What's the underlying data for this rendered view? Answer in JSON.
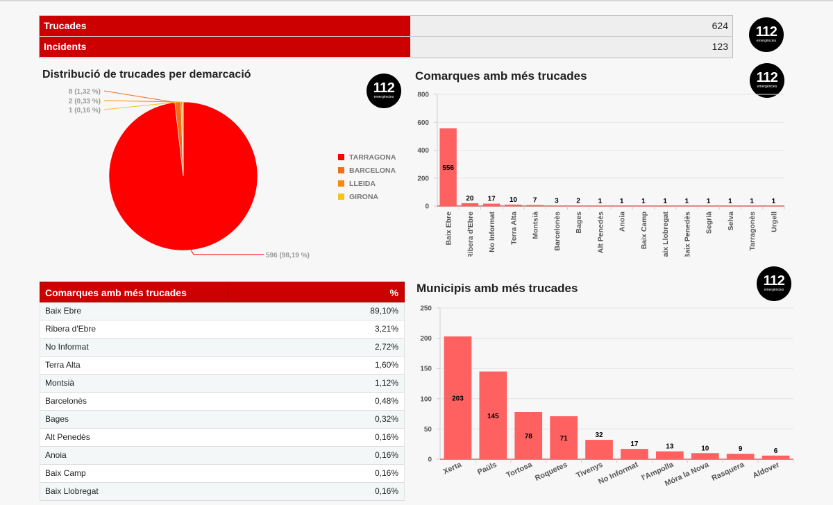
{
  "summary": [
    {
      "label": "Trucades",
      "value": "624"
    },
    {
      "label": "Incidents",
      "value": "123"
    }
  ],
  "logo": {
    "big": "112",
    "small": "emergències"
  },
  "pie": {
    "title": "Distribució de trucades per demarcació",
    "legend": [
      "TARRAGONA",
      "BARCELONA",
      "LLEIDA",
      "GIRONA"
    ],
    "labels": [
      "596 (98,19 %)",
      "8 (1,32 %)",
      "2 (0,33 %)",
      "1 (0,16 %)"
    ]
  },
  "comarques_chart": {
    "title": "Comarques amb més trucades"
  },
  "municipis_chart": {
    "title": "Municipis amb més trucades"
  },
  "table": {
    "header": [
      "Comarques amb més trucades",
      "%"
    ],
    "rows": [
      [
        "Baix Ebre",
        "89,10%"
      ],
      [
        "Ribera d'Ebre",
        "3,21%"
      ],
      [
        "No Informat",
        "2,72%"
      ],
      [
        "Terra Alta",
        "1,60%"
      ],
      [
        "Montsià",
        "1,12%"
      ],
      [
        "Barcelonès",
        "0,48%"
      ],
      [
        "Bages",
        "0,32%"
      ],
      [
        "Alt Penedès",
        "0,16%"
      ],
      [
        "Anoia",
        "0,16%"
      ],
      [
        "Baix Camp",
        "0,16%"
      ],
      [
        "Baix Llobregat",
        "0,16%"
      ]
    ]
  },
  "chart_data": [
    {
      "type": "pie",
      "title": "Distribució de trucades per demarcació",
      "categories": [
        "TARRAGONA",
        "BARCELONA",
        "LLEIDA",
        "GIRONA"
      ],
      "values": [
        596,
        8,
        2,
        1
      ],
      "colors": [
        "#ff0000",
        "#f06d1a",
        "#f58a0d",
        "#f5c416"
      ],
      "legend": "right"
    },
    {
      "type": "bar",
      "title": "Comarques amb més trucades",
      "categories": [
        "Baix Ebre",
        "Ribera d'Ebre",
        "No Informat",
        "Terra Alta",
        "Montsià",
        "Barcelonès",
        "Bages",
        "Alt Penedès",
        "Anoia",
        "Baix Camp",
        "Baix Llobregat",
        "Baix Penedès",
        "Segrià",
        "Selva",
        "Tarragonès",
        "Urgell"
      ],
      "values": [
        556,
        20,
        17,
        10,
        7,
        3,
        2,
        1,
        1,
        1,
        1,
        1,
        1,
        1,
        1,
        1
      ],
      "ylim": [
        0,
        800
      ],
      "yticks": [
        0,
        200,
        400,
        600,
        800
      ],
      "color": "#ff6060"
    },
    {
      "type": "bar",
      "title": "Municipis amb més trucades",
      "categories": [
        "Xerta",
        "Paüls",
        "Tortosa",
        "Roquetes",
        "Tivenys",
        "No Informat",
        "l'Ampolla",
        "Móra la Nova",
        "Rasquera",
        "Aldover"
      ],
      "values": [
        203,
        145,
        78,
        71,
        32,
        17,
        13,
        10,
        9,
        6
      ],
      "ylim": [
        0,
        250
      ],
      "yticks": [
        0,
        50,
        100,
        150,
        200,
        250
      ],
      "color": "#ff6060"
    }
  ]
}
